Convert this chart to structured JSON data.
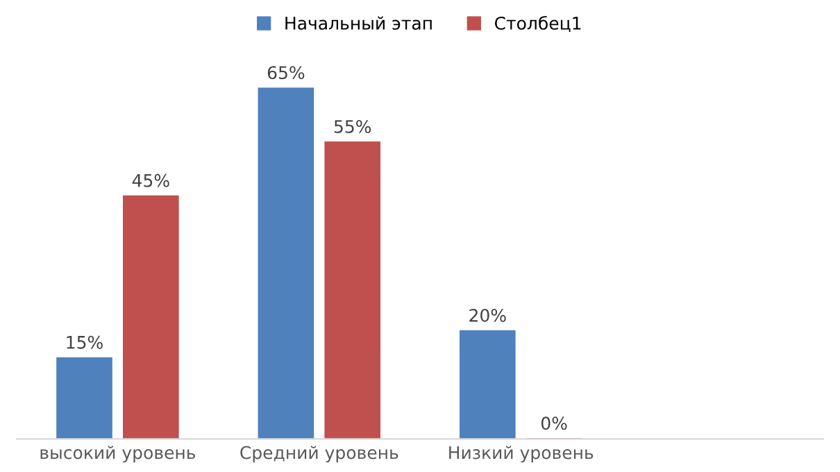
{
  "chart_data": {
    "type": "bar",
    "categories": [
      "высокий уровень",
      "Средний уровень",
      "Низкий уровень",
      null
    ],
    "series": [
      {
        "name": "Начальный этап",
        "color": "#4f81bd",
        "values": [
          15,
          65,
          20,
          null
        ],
        "value_labels": [
          "15%",
          "65%",
          "20%",
          null
        ]
      },
      {
        "name": "Столбец1",
        "color": "#c0504d",
        "values": [
          45,
          55,
          0,
          null
        ],
        "value_labels": [
          "45%",
          "55%",
          "0%",
          null
        ]
      }
    ],
    "legend": "top",
    "grid": false
  }
}
